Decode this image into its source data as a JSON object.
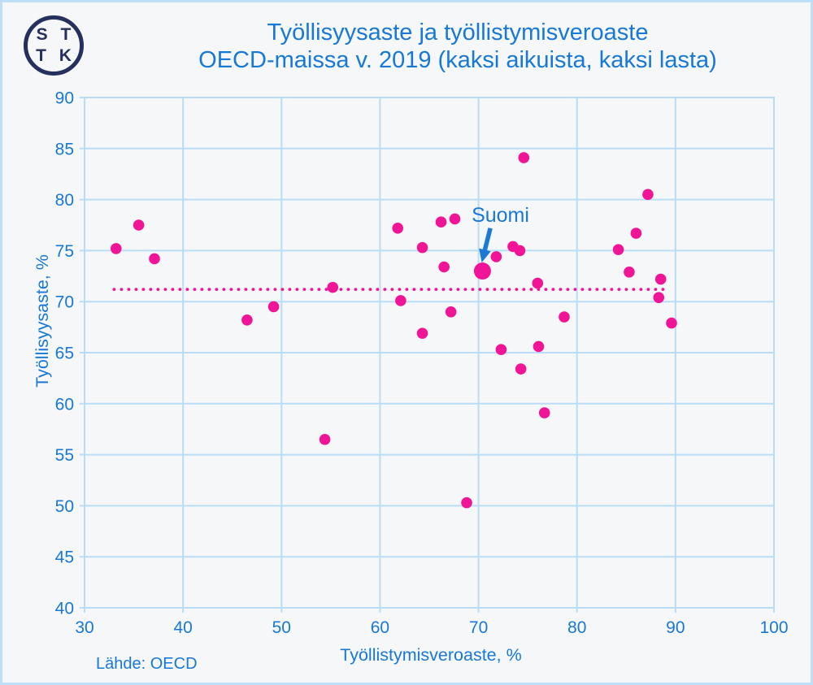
{
  "logo": {
    "name": "STTK",
    "top": "S T",
    "bottom": "T K"
  },
  "title": {
    "line1": "Työllisyysaste ja työllistymisveroaste",
    "line2": "OECD-maissa v. 2019 (kaksi aikuista, kaksi lasta)"
  },
  "source": "Lähde: OECD",
  "colors": {
    "accent_pink": "#f01496",
    "label_blue": "#1878d6",
    "arrow_blue": "#1c7ad6",
    "grid_blue": "#b9ddf6",
    "logo_navy": "#25305e",
    "background": "#f6f7f8",
    "frame_border": "#bedff7"
  },
  "chart_data": {
    "type": "scatter",
    "title": "Työllisyysaste ja työllistymisveroaste OECD-maissa v. 2019 (kaksi aikuista, kaksi lasta)",
    "xlabel": "Työllistymisveroaste,  %",
    "ylabel": "Työllisyysaste, %",
    "xlim": [
      30,
      100
    ],
    "ylim": [
      40,
      90
    ],
    "x_ticks": [
      30,
      40,
      50,
      60,
      70,
      80,
      90,
      100
    ],
    "y_ticks": [
      40,
      45,
      50,
      55,
      60,
      65,
      70,
      75,
      80,
      85,
      90
    ],
    "grid": true,
    "legend": "none",
    "points": [
      [
        33.2,
        75.2
      ],
      [
        35.5,
        77.5
      ],
      [
        37.1,
        74.2
      ],
      [
        46.5,
        68.2
      ],
      [
        49.2,
        69.5
      ],
      [
        54.4,
        56.5
      ],
      [
        55.2,
        71.4
      ],
      [
        61.8,
        77.2
      ],
      [
        62.1,
        70.1
      ],
      [
        64.3,
        75.3
      ],
      [
        64.3,
        66.9
      ],
      [
        66.2,
        77.8
      ],
      [
        66.5,
        73.4
      ],
      [
        67.2,
        69.0
      ],
      [
        67.6,
        78.1
      ],
      [
        68.8,
        50.3
      ],
      [
        71.8,
        74.4
      ],
      [
        72.3,
        65.3
      ],
      [
        73.5,
        75.4
      ],
      [
        74.2,
        75.0
      ],
      [
        74.3,
        63.4
      ],
      [
        74.6,
        84.1
      ],
      [
        76.0,
        71.8
      ],
      [
        76.1,
        65.6
      ],
      [
        76.7,
        59.1
      ],
      [
        78.7,
        68.5
      ],
      [
        84.2,
        75.1
      ],
      [
        85.3,
        72.9
      ],
      [
        86.0,
        76.7
      ],
      [
        87.2,
        80.5
      ],
      [
        88.3,
        70.4
      ],
      [
        88.5,
        72.2
      ],
      [
        89.6,
        67.9
      ]
    ],
    "highlight_point": [
      70.4,
      73.0
    ],
    "mean_line": {
      "y": 71.2,
      "x_start": 33.0,
      "x_end": 89.3,
      "style": "dotted"
    },
    "annotation": {
      "label": "Suomi",
      "label_anchor": [
        69.3,
        77.8
      ],
      "arrow_from": [
        71.2,
        77.2
      ],
      "arrow_to": [
        70.45,
        74.3
      ]
    }
  }
}
